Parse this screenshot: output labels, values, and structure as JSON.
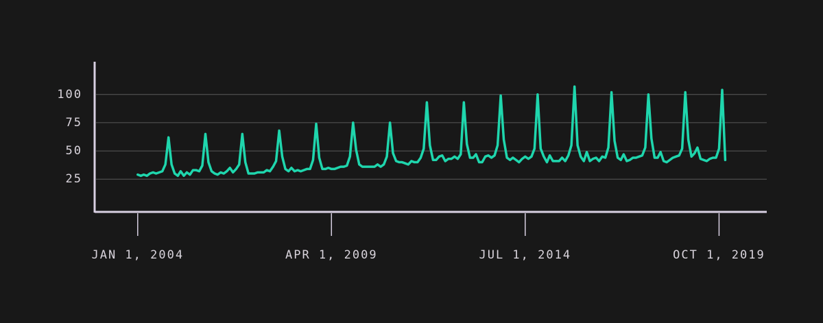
{
  "chart_data": {
    "type": "line",
    "x": [
      "2004-01-01",
      "2004-02-01",
      "2004-03-01",
      "2004-04-01",
      "2004-05-01",
      "2004-06-01",
      "2004-07-01",
      "2004-08-01",
      "2004-09-01",
      "2004-10-01",
      "2004-11-01",
      "2004-12-01",
      "2005-01-01",
      "2005-02-01",
      "2005-03-01",
      "2005-04-01",
      "2005-05-01",
      "2005-06-01",
      "2005-07-01",
      "2005-08-01",
      "2005-09-01",
      "2005-10-01",
      "2005-11-01",
      "2005-12-01",
      "2006-01-01",
      "2006-02-01",
      "2006-03-01",
      "2006-04-01",
      "2006-05-01",
      "2006-06-01",
      "2006-07-01",
      "2006-08-01",
      "2006-09-01",
      "2006-10-01",
      "2006-11-01",
      "2006-12-01",
      "2007-01-01",
      "2007-02-01",
      "2007-03-01",
      "2007-04-01",
      "2007-05-01",
      "2007-06-01",
      "2007-07-01",
      "2007-08-01",
      "2007-09-01",
      "2007-10-01",
      "2007-11-01",
      "2007-12-01",
      "2008-01-01",
      "2008-02-01",
      "2008-03-01",
      "2008-04-01",
      "2008-05-01",
      "2008-06-01",
      "2008-07-01",
      "2008-08-01",
      "2008-09-01",
      "2008-10-01",
      "2008-11-01",
      "2008-12-01",
      "2009-01-01",
      "2009-02-01",
      "2009-03-01",
      "2009-04-01",
      "2009-05-01",
      "2009-06-01",
      "2009-07-01",
      "2009-08-01",
      "2009-09-01",
      "2009-10-01",
      "2009-11-01",
      "2009-12-01",
      "2010-01-01",
      "2010-02-01",
      "2010-03-01",
      "2010-04-01",
      "2010-05-01",
      "2010-06-01",
      "2010-07-01",
      "2010-08-01",
      "2010-09-01",
      "2010-10-01",
      "2010-11-01",
      "2010-12-01",
      "2011-01-01",
      "2011-02-01",
      "2011-03-01",
      "2011-04-01",
      "2011-05-01",
      "2011-06-01",
      "2011-07-01",
      "2011-08-01",
      "2011-09-01",
      "2011-10-01",
      "2011-11-01",
      "2011-12-01",
      "2012-01-01",
      "2012-02-01",
      "2012-03-01",
      "2012-04-01",
      "2012-05-01",
      "2012-06-01",
      "2012-07-01",
      "2012-08-01",
      "2012-09-01",
      "2012-10-01",
      "2012-11-01",
      "2012-12-01",
      "2013-01-01",
      "2013-02-01",
      "2013-03-01",
      "2013-04-01",
      "2013-05-01",
      "2013-06-01",
      "2013-07-01",
      "2013-08-01",
      "2013-09-01",
      "2013-10-01",
      "2013-11-01",
      "2013-12-01",
      "2014-01-01",
      "2014-02-01",
      "2014-03-01",
      "2014-04-01",
      "2014-05-01",
      "2014-06-01",
      "2014-07-01",
      "2014-08-01",
      "2014-09-01",
      "2014-10-01",
      "2014-11-01",
      "2014-12-01",
      "2015-01-01",
      "2015-02-01",
      "2015-03-01",
      "2015-04-01",
      "2015-05-01",
      "2015-06-01",
      "2015-07-01",
      "2015-08-01",
      "2015-09-01",
      "2015-10-01",
      "2015-11-01",
      "2015-12-01",
      "2016-01-01",
      "2016-02-01",
      "2016-03-01",
      "2016-04-01",
      "2016-05-01",
      "2016-06-01",
      "2016-07-01",
      "2016-08-01",
      "2016-09-01",
      "2016-10-01",
      "2016-11-01",
      "2016-12-01",
      "2017-01-01",
      "2017-02-01",
      "2017-03-01",
      "2017-04-01",
      "2017-05-01",
      "2017-06-01",
      "2017-07-01",
      "2017-08-01",
      "2017-09-01",
      "2017-10-01",
      "2017-11-01",
      "2017-12-01",
      "2018-01-01",
      "2018-02-01",
      "2018-03-01",
      "2018-04-01",
      "2018-05-01",
      "2018-06-01",
      "2018-07-01",
      "2018-08-01",
      "2018-09-01",
      "2018-10-01",
      "2018-11-01",
      "2018-12-01",
      "2019-01-01",
      "2019-02-01",
      "2019-03-01",
      "2019-04-01",
      "2019-05-01",
      "2019-06-01",
      "2019-07-01",
      "2019-08-01",
      "2019-09-01",
      "2019-10-01",
      "2019-11-01",
      "2019-12-01"
    ],
    "series": [
      {
        "color": "#1fd6ad",
        "values": [
          29,
          28,
          29,
          28,
          30,
          31,
          30,
          31,
          32,
          38,
          62,
          38,
          30,
          28,
          32,
          28,
          31,
          29,
          33,
          33,
          32,
          37,
          65,
          40,
          32,
          30,
          29,
          31,
          30,
          32,
          35,
          31,
          34,
          38,
          65,
          40,
          30,
          30,
          30,
          31,
          31,
          31,
          33,
          32,
          36,
          41,
          68,
          45,
          34,
          32,
          35,
          32,
          33,
          32,
          33,
          34,
          34,
          42,
          74,
          44,
          34,
          34,
          35,
          34,
          34,
          35,
          36,
          36,
          37,
          45,
          75,
          51,
          38,
          36,
          36,
          36,
          36,
          36,
          38,
          36,
          38,
          45,
          75,
          48,
          41,
          40,
          40,
          39,
          38,
          41,
          40,
          40,
          44,
          52,
          93,
          55,
          42,
          42,
          45,
          46,
          41,
          43,
          43,
          45,
          43,
          47,
          93,
          56,
          44,
          44,
          47,
          40,
          40,
          45,
          46,
          44,
          46,
          55,
          99,
          60,
          44,
          42,
          44,
          42,
          40,
          43,
          45,
          43,
          45,
          52,
          100,
          52,
          45,
          40,
          46,
          41,
          41,
          41,
          44,
          41,
          46,
          55,
          107,
          55,
          45,
          41,
          49,
          41,
          43,
          44,
          41,
          45,
          44,
          53,
          102,
          59,
          44,
          42,
          47,
          41,
          42,
          44,
          44,
          45,
          46,
          53,
          100,
          61,
          44,
          44,
          49,
          41,
          40,
          42,
          44,
          45,
          46,
          52,
          102,
          60,
          45,
          48,
          53,
          43,
          42,
          41,
          43,
          44,
          44,
          52,
          104,
          42
        ]
      }
    ],
    "xlim": [
      "2002-11-01",
      "2021-01-15"
    ],
    "xticks": [
      {
        "value": "2004-01-01",
        "label": "JAN 1, 2004"
      },
      {
        "value": "2009-04-01",
        "label": "APR 1, 2009"
      },
      {
        "value": "2014-07-01",
        "label": "JUL 1, 2014"
      },
      {
        "value": "2019-10-01",
        "label": "OCT 1, 2019"
      }
    ],
    "ylim": [
      -4,
      129
    ],
    "yticks": [
      25,
      50,
      75,
      100
    ],
    "grid": true
  }
}
